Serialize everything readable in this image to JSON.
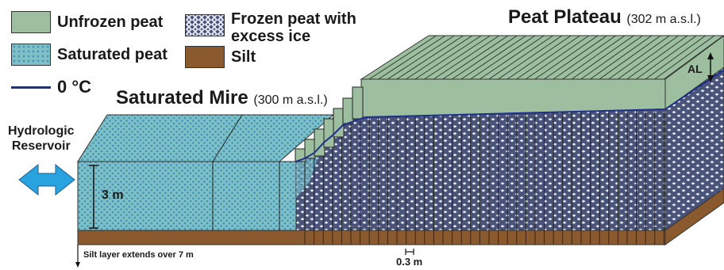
{
  "legend": {
    "unfrozen_peat": "Unfrozen peat",
    "saturated_peat": "Saturated peat",
    "zero_c": "0 °C",
    "frozen_peat": "Frozen peat with excess ice",
    "frozen_peat_line1": "Frozen peat with",
    "frozen_peat_line2": "excess ice",
    "silt": "Silt"
  },
  "labels": {
    "peat_plateau": "Peat Plateau",
    "peat_plateau_elev": "(302 m a.s.l.)",
    "saturated_mire": "Saturated Mire",
    "saturated_mire_elev": "(300 m a.s.l.)",
    "hydrologic_reservoir": "Hydrologic Reservoir",
    "hydrologic_line1": "Hydrologic",
    "hydrologic_line2": "Reservoir",
    "depth": "3 m",
    "active_layer": "AL",
    "column_width": "0.3 m",
    "silt_note": "Silt layer extends over 7 m"
  },
  "colors": {
    "unfrozen_peat": "#9dbfa0",
    "saturated_peat": "#7ec0c6",
    "saturated_dot": "#3f93b8",
    "frozen_bg": "#4a5378",
    "frozen_diamond": "#e6ebf5",
    "silt": "#8a5a2e",
    "zero_c_line": "#1f2f8c",
    "arrow": "#29a3e0"
  }
}
